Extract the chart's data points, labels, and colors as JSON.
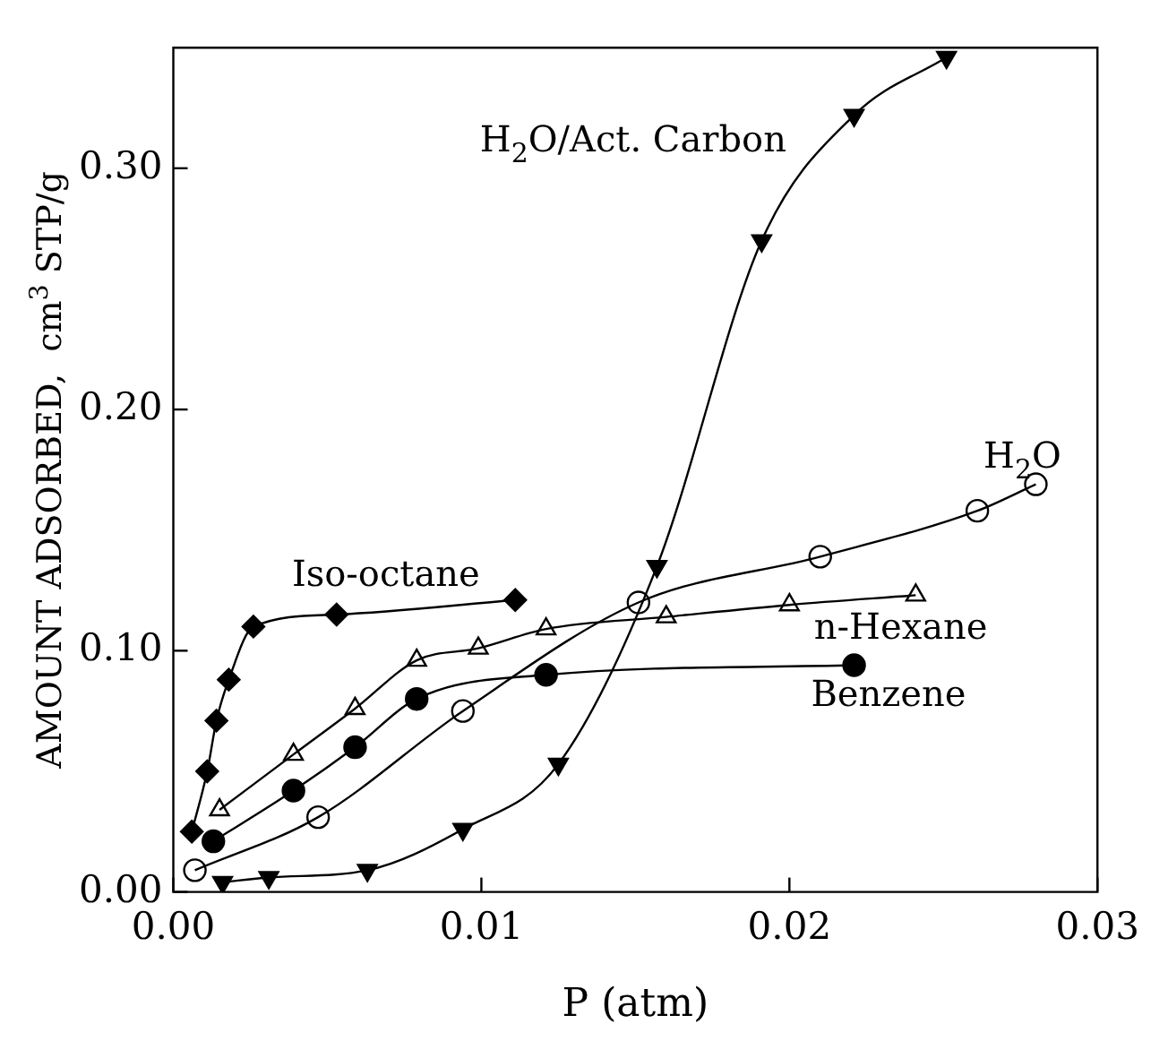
{
  "chart_data": {
    "type": "line",
    "xlabel": "P (atm)",
    "ylabel": "AMOUNT ADSORBED,  cm$^{3}$ STP/g",
    "xlim": [
      0,
      0.03
    ],
    "ylim": [
      0,
      0.35
    ],
    "xticks": [
      {
        "value": 0,
        "label": "0.00"
      },
      {
        "value": 0.01,
        "label": "0.01"
      },
      {
        "value": 0.02,
        "label": "0.02"
      },
      {
        "value": 0.03,
        "label": "0.03"
      }
    ],
    "yticks": [
      {
        "value": 0,
        "label": "0.00"
      },
      {
        "value": 0.1,
        "label": "0.10"
      },
      {
        "value": 0.2,
        "label": "0.20"
      },
      {
        "value": 0.3,
        "label": "0.30"
      }
    ],
    "grid": false,
    "legend": false,
    "series": [
      {
        "name": "Iso-octane",
        "color": "#000000",
        "marker": "diamond",
        "x": [
          0.0006,
          0.0011,
          0.0014,
          0.0018,
          0.0026,
          0.0053,
          0.0111
        ],
        "values": [
          0.025,
          0.05,
          0.071,
          0.088,
          0.11,
          0.115,
          0.121
        ]
      },
      {
        "name": "n-Hexane",
        "color": "#000000",
        "marker": "triangle-open",
        "x": [
          0.0015,
          0.0039,
          0.0059,
          0.0079,
          0.0099,
          0.0121,
          0.016,
          0.02,
          0.0241
        ],
        "values": [
          0.034,
          0.057,
          0.076,
          0.096,
          0.101,
          0.109,
          0.114,
          0.119,
          0.123
        ]
      },
      {
        "name": "Benzene",
        "color": "#000000",
        "marker": "circle",
        "x": [
          0.0013,
          0.0039,
          0.0059,
          0.0079,
          0.0121,
          0.0221
        ],
        "values": [
          0.021,
          0.042,
          0.06,
          0.08,
          0.09,
          0.094
        ]
      },
      {
        "name": "H$_{2}$O",
        "color": "#000000",
        "marker": "circle-open",
        "x": [
          0.0007,
          0.0047,
          0.0094,
          0.0151,
          0.021,
          0.0261,
          0.028
        ],
        "values": [
          0.009,
          0.031,
          0.075,
          0.12,
          0.139,
          0.158,
          0.169
        ]
      },
      {
        "name": "H$_{2}$O/Act. Carbon",
        "color": "#000000",
        "marker": "triangle-down",
        "x": [
          0.0016,
          0.0031,
          0.0063,
          0.0094,
          0.0125,
          0.0157,
          0.0191,
          0.0221,
          0.0251
        ],
        "values": [
          0.004,
          0.006,
          0.009,
          0.026,
          0.053,
          0.135,
          0.27,
          0.322,
          0.346
        ]
      }
    ]
  }
}
